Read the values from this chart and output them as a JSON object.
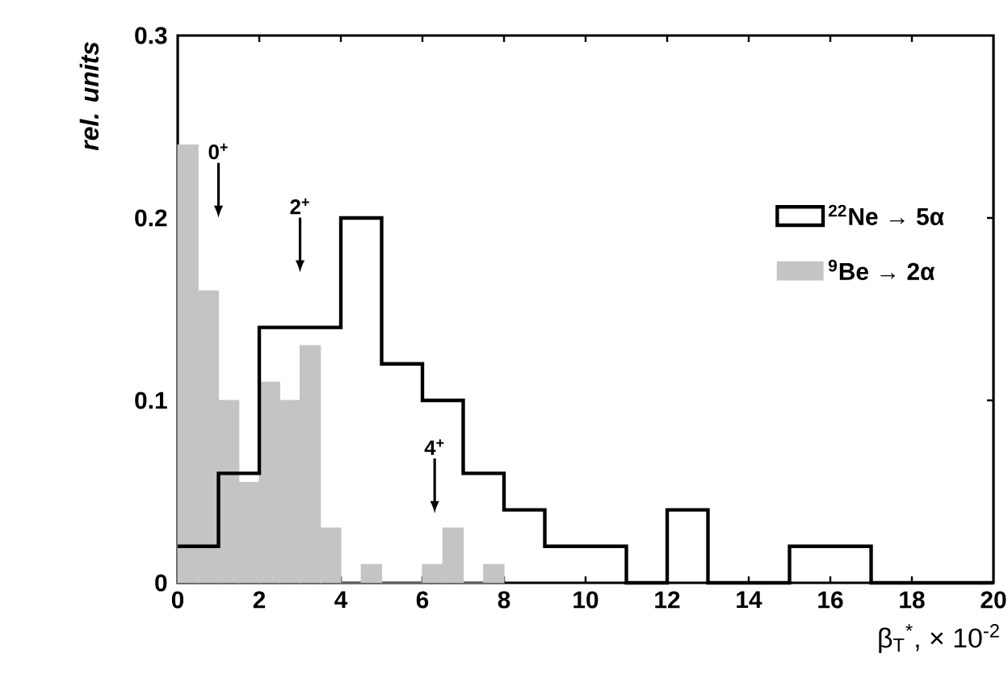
{
  "chart_data": {
    "type": "histogram",
    "ylabel": "*rel. units*",
    "xlabel": "β$_{T}$$^{*}$, × 10$^{-2}$",
    "xlim": [
      0,
      20
    ],
    "ylim": [
      0,
      0.3
    ],
    "xticks": [
      {
        "value": 0,
        "label": "0"
      },
      {
        "value": 2,
        "label": "2"
      },
      {
        "value": 4,
        "label": "4"
      },
      {
        "value": 6,
        "label": "6"
      },
      {
        "value": 8,
        "label": "8"
      },
      {
        "value": 10,
        "label": "10"
      },
      {
        "value": 12,
        "label": "12"
      },
      {
        "value": 14,
        "label": "14"
      },
      {
        "value": 16,
        "label": "16"
      },
      {
        "value": 18,
        "label": "18"
      },
      {
        "value": 20,
        "label": "20"
      }
    ],
    "yticks": [
      {
        "value": 0,
        "label": "0"
      },
      {
        "value": 0.1,
        "label": "0.1"
      },
      {
        "value": 0.2,
        "label": "0.2"
      },
      {
        "value": 0.3,
        "label": "0.3"
      }
    ],
    "grid": false,
    "legend": "right",
    "bins": [
      0,
      0.5,
      1,
      1.5,
      2,
      2.5,
      3,
      3.5,
      4,
      4.5,
      5,
      5.5,
      6,
      6.5,
      7,
      7.5,
      8
    ],
    "series": [
      {
        "name": "$^{22}$Ne → 5α",
        "type": "step",
        "color": "#000000",
        "x": [
          0,
          1,
          2,
          3,
          4,
          5,
          6,
          7,
          8,
          9,
          10,
          11,
          12,
          13,
          14,
          15,
          16,
          17,
          18,
          19,
          20
        ],
        "values": [
          0.02,
          0.06,
          0.14,
          0.14,
          0.2,
          0.12,
          0.1,
          0.06,
          0.04,
          0.02,
          0.02,
          0,
          0.04,
          0,
          0,
          0.02,
          0.02,
          0,
          0,
          0,
          0
        ]
      },
      {
        "name": "$^{9}$Be → 2α",
        "color": "#c4c4c4",
        "values": [
          0.24,
          0.16,
          0.1,
          0.055,
          0.11,
          0.1,
          0.13,
          0.03,
          0,
          0.01,
          0,
          0,
          0.01,
          0.03,
          0,
          0.01
        ]
      }
    ],
    "annotations": [
      "0$^{+}$",
      "2$^{+}$",
      "4$^{+}$"
    ]
  }
}
